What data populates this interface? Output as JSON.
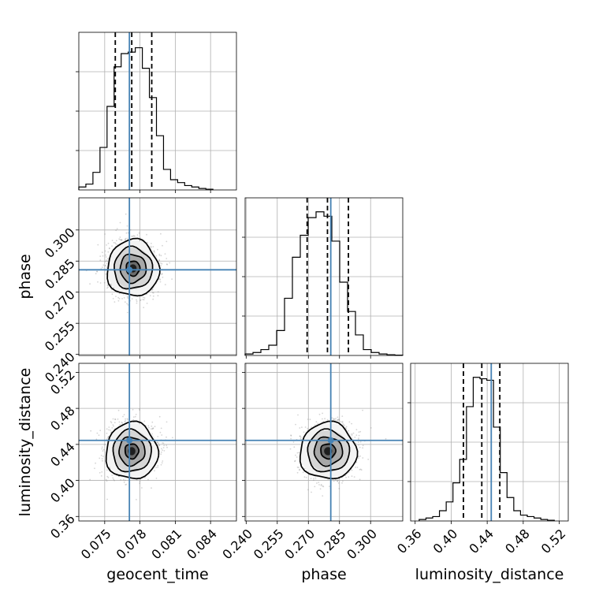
{
  "chart_data": {
    "type": "corner",
    "title": "",
    "parameters": [
      {
        "name": "geocent_time",
        "axis_label": "geocent_time",
        "range": [
          0.0728,
          0.0862
        ],
        "ticks": [
          0.075,
          0.078,
          0.081,
          0.084
        ],
        "tick_labels": [
          "0.075",
          "0.078",
          "0.081",
          "0.084"
        ],
        "truth": 0.0771,
        "quantiles": [
          0.0759,
          0.0773,
          0.079
        ],
        "histogram": {
          "edges": [
            0.0728,
            0.0734,
            0.074,
            0.0746,
            0.0752,
            0.0758,
            0.0764,
            0.077,
            0.0776,
            0.0782,
            0.0788,
            0.0794,
            0.08,
            0.0806,
            0.0812,
            0.0818,
            0.0824,
            0.083,
            0.0836,
            0.0842
          ],
          "counts": [
            0.02,
            0.04,
            0.12,
            0.29,
            0.57,
            0.84,
            0.93,
            0.94,
            0.97,
            0.83,
            0.63,
            0.37,
            0.14,
            0.07,
            0.05,
            0.03,
            0.02,
            0.01,
            0.005
          ]
        }
      },
      {
        "name": "phase",
        "axis_label": "phase",
        "range": [
          0.2395,
          0.3155
        ],
        "ticks": [
          0.24,
          0.255,
          0.27,
          0.285,
          0.3
        ],
        "tick_labels": [
          "0.240",
          "0.255",
          "0.270",
          "0.285",
          "0.300"
        ],
        "truth": 0.2808,
        "quantiles": [
          0.2694,
          0.2792,
          0.2893
        ],
        "histogram": {
          "edges": [
            0.2395,
            0.2433,
            0.2471,
            0.2509,
            0.2547,
            0.2585,
            0.2623,
            0.2661,
            0.2699,
            0.2737,
            0.2775,
            0.2813,
            0.2851,
            0.2889,
            0.2927,
            0.2965,
            0.3003,
            0.3041,
            0.3079,
            0.3117,
            0.3155
          ],
          "counts": [
            0.01,
            0.02,
            0.04,
            0.07,
            0.17,
            0.39,
            0.67,
            0.82,
            0.94,
            0.98,
            0.95,
            0.78,
            0.5,
            0.3,
            0.14,
            0.04,
            0.02,
            0.01,
            0.005,
            0.002
          ]
        }
      },
      {
        "name": "luminosity_distance",
        "axis_label": "luminosity_distance",
        "range": [
          0.355,
          0.53
        ],
        "ticks": [
          0.36,
          0.4,
          0.44,
          0.48,
          0.52
        ],
        "tick_labels": [
          "0.36",
          "0.40",
          "0.44",
          "0.48",
          "0.52"
        ],
        "truth": 0.4445,
        "quantiles": [
          0.4136,
          0.434,
          0.454
        ],
        "histogram": {
          "edges": [
            0.3645,
            0.372,
            0.3795,
            0.387,
            0.3945,
            0.402,
            0.4095,
            0.417,
            0.4245,
            0.432,
            0.4395,
            0.447,
            0.4545,
            0.462,
            0.4695,
            0.477,
            0.4845,
            0.492,
            0.4995,
            0.507,
            0.5145
          ],
          "counts": [
            0.01,
            0.02,
            0.03,
            0.07,
            0.13,
            0.26,
            0.42,
            0.78,
            0.98,
            0.97,
            0.96,
            0.64,
            0.33,
            0.16,
            0.07,
            0.04,
            0.03,
            0.02,
            0.01,
            0.005
          ]
        }
      }
    ],
    "pairs": [
      {
        "x": "geocent_time",
        "y": "phase",
        "center": [
          0.0774,
          0.2815
        ],
        "spread": [
          0.00105,
          0.0065
        ]
      },
      {
        "x": "geocent_time",
        "y": "luminosity_distance",
        "center": [
          0.0773,
          0.4325
        ],
        "spread": [
          0.00105,
          0.015
        ]
      },
      {
        "x": "phase",
        "y": "luminosity_distance",
        "center": [
          0.2795,
          0.4325
        ],
        "spread": [
          0.0065,
          0.015
        ]
      }
    ],
    "histogram_style": "step",
    "quantile_style": "black dashed",
    "truth_color": "#4682b4",
    "grid": true,
    "legend": "none"
  }
}
